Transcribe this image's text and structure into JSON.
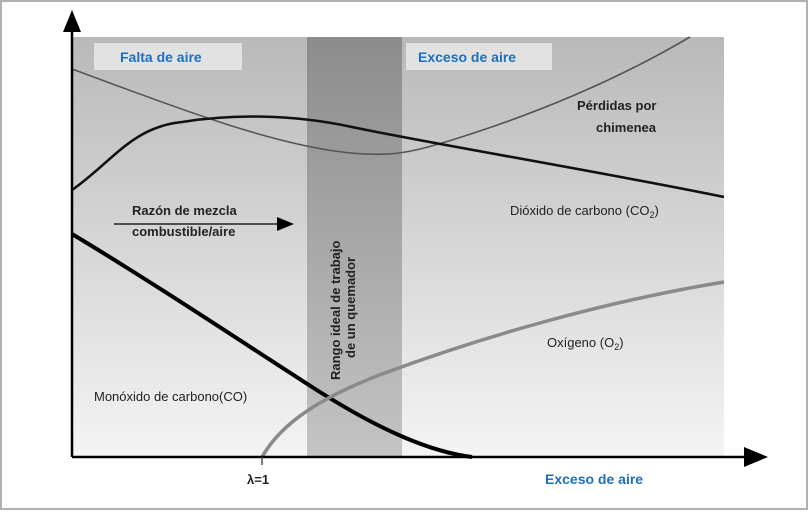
{
  "regions": {
    "lack_of_air": "Falta de aire",
    "excess_of_air": "Exceso de aire",
    "ideal_range_line1": "Rango ideal de trabajo",
    "ideal_range_line2": "de un quemador"
  },
  "curves": {
    "stack_losses_line1": "Pérdidas por",
    "stack_losses_line2": "chimenea",
    "co2": "Dióxido de carbono (CO",
    "co2_sub": "2",
    "co2_close": ")",
    "o2": "Oxígeno (O",
    "o2_sub": "2",
    "o2_close": ")",
    "co": "Monóxido de carbono(CO)"
  },
  "mixture_arrow": {
    "line1": "Razón de mezcla",
    "line2": "combustible/aire"
  },
  "x_axis": {
    "tick_label": "λ=1",
    "label": "Exceso de aire"
  },
  "colors": {
    "accent_blue": "#1e6fc0",
    "band": "#8e8e8e",
    "o2_curve": "#8a8a8a"
  }
}
